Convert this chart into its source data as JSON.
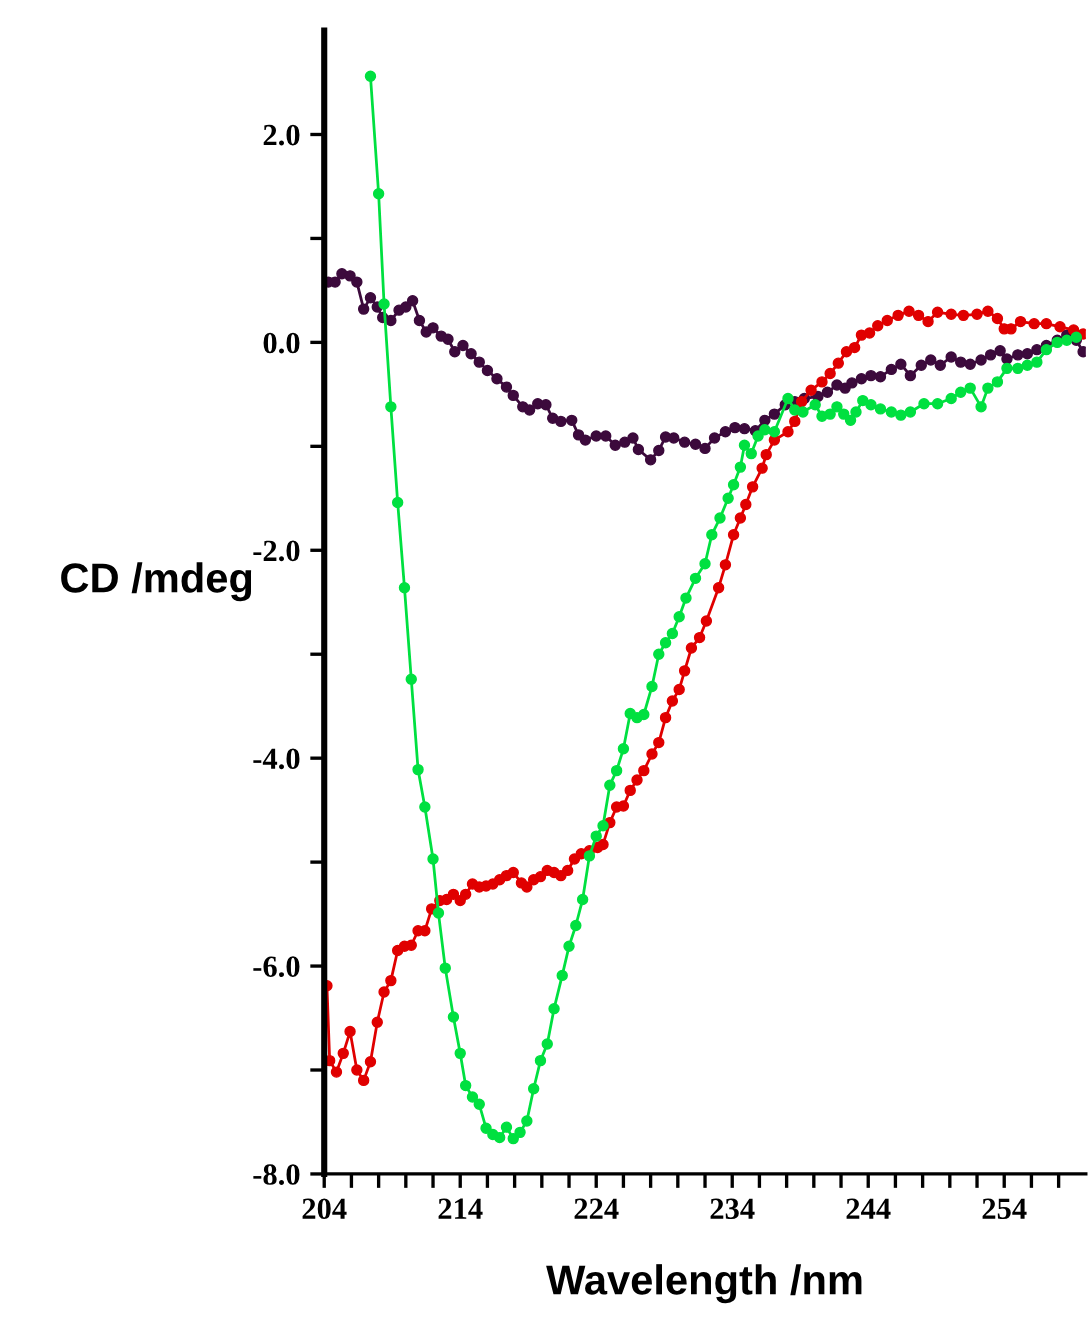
{
  "chart_data": {
    "type": "line",
    "xlabel": "Wavelength /nm",
    "ylabel": "CD /mdeg",
    "xlim": [
      204,
      260
    ],
    "ylim": [
      -8,
      3
    ],
    "xticks": [
      204,
      {
        "value": 206,
        "label": null
      },
      {
        "value": 208,
        "label": null
      },
      {
        "value": 210,
        "label": null
      },
      {
        "value": 212,
        "label": null
      },
      214,
      {
        "value": 216,
        "label": null
      },
      {
        "value": 218,
        "label": null
      },
      {
        "value": 220,
        "label": null
      },
      {
        "value": 222,
        "label": null
      },
      224,
      {
        "value": 226,
        "label": null
      },
      {
        "value": 228,
        "label": null
      },
      {
        "value": 230,
        "label": null
      },
      {
        "value": 232,
        "label": null
      },
      234,
      {
        "value": 236,
        "label": null
      },
      {
        "value": 238,
        "label": null
      },
      {
        "value": 240,
        "label": null
      },
      {
        "value": 242,
        "label": null
      },
      244,
      {
        "value": 246,
        "label": null
      },
      {
        "value": 248,
        "label": null
      },
      {
        "value": 250,
        "label": null
      },
      {
        "value": 252,
        "label": null
      },
      254,
      {
        "value": 256,
        "label": null
      },
      {
        "value": 258,
        "label": null
      }
    ],
    "yticks": [
      {
        "value": -8,
        "label": "-8.0"
      },
      {
        "value": -7,
        "label": null
      },
      {
        "value": -6,
        "label": "-6.0"
      },
      {
        "value": -5,
        "label": null
      },
      {
        "value": -4,
        "label": "-4.0"
      },
      {
        "value": -3,
        "label": null
      },
      {
        "value": -2,
        "label": "-2.0"
      },
      {
        "value": -1,
        "label": null
      },
      {
        "value": 0,
        "label": "0.0"
      },
      {
        "value": 1,
        "label": null
      },
      {
        "value": 2,
        "label": "2.0"
      }
    ],
    "marker": "circle",
    "line_style": "solid",
    "grid": false,
    "legend": false,
    "series": [
      {
        "color": "#3c0a3c",
        "x": [
          204.3,
          204.8,
          205.3,
          205.9,
          206.4,
          206.9,
          207.4,
          207.9,
          208.3,
          208.9,
          209.5,
          210.0,
          210.5,
          211.0,
          211.5,
          212.0,
          212.6,
          213.1,
          213.6,
          214.2,
          214.8,
          215.4,
          216.0,
          216.7,
          217.4,
          217.9,
          218.6,
          219.1,
          219.7,
          220.3,
          220.8,
          221.4,
          222.2,
          222.7,
          223.2,
          224.0,
          224.7,
          225.4,
          226.1,
          226.7,
          227.1,
          228.0,
          228.6,
          229.1,
          229.7,
          230.5,
          231.3,
          232.0,
          232.7,
          233.5,
          234.2,
          234.9,
          235.7,
          236.4,
          237.1,
          237.9,
          238.6,
          239.3,
          240.3,
          241.0,
          241.7,
          242.3,
          242.8,
          243.5,
          244.2,
          244.9,
          245.7,
          246.4,
          247.1,
          247.9,
          248.6,
          249.3,
          250.1,
          250.8,
          251.5,
          252.3,
          253.0,
          253.7,
          254.2,
          255.0,
          255.7,
          256.4,
          257.1,
          257.9,
          258.6,
          259.3,
          259.8
        ],
        "values": [
          0.58,
          0.58,
          0.66,
          0.64,
          0.58,
          0.32,
          0.43,
          0.34,
          0.24,
          0.21,
          0.31,
          0.34,
          0.4,
          0.21,
          0.1,
          0.14,
          0.06,
          0.03,
          -0.09,
          -0.03,
          -0.11,
          -0.19,
          -0.27,
          -0.35,
          -0.43,
          -0.51,
          -0.62,
          -0.65,
          -0.59,
          -0.6,
          -0.73,
          -0.76,
          -0.75,
          -0.89,
          -0.94,
          -0.9,
          -0.9,
          -0.99,
          -0.96,
          -0.92,
          -1.03,
          -1.13,
          -1.04,
          -0.91,
          -0.92,
          -0.96,
          -0.98,
          -1.02,
          -0.92,
          -0.86,
          -0.82,
          -0.83,
          -0.85,
          -0.75,
          -0.69,
          -0.6,
          -0.57,
          -0.54,
          -0.52,
          -0.48,
          -0.41,
          -0.44,
          -0.39,
          -0.35,
          -0.32,
          -0.33,
          -0.26,
          -0.21,
          -0.32,
          -0.22,
          -0.17,
          -0.22,
          -0.14,
          -0.19,
          -0.21,
          -0.17,
          -0.12,
          -0.08,
          -0.16,
          -0.12,
          -0.11,
          -0.07,
          -0.03,
          0.02,
          0.07,
          0.02,
          -0.09
        ]
      },
      {
        "color": "#e00000",
        "x": [
          204.2,
          204.4,
          204.9,
          205.4,
          205.9,
          206.4,
          206.9,
          207.4,
          207.9,
          208.4,
          208.9,
          209.4,
          209.9,
          210.4,
          210.9,
          211.4,
          211.9,
          212.5,
          213.0,
          213.5,
          214.0,
          214.4,
          214.9,
          215.4,
          215.9,
          216.4,
          216.9,
          217.4,
          217.9,
          218.5,
          218.9,
          219.4,
          219.9,
          220.4,
          220.9,
          221.4,
          221.9,
          222.4,
          222.9,
          223.5,
          224.1,
          224.5,
          225.0,
          225.5,
          226.0,
          226.5,
          227.0,
          227.5,
          228.1,
          228.6,
          229.1,
          229.6,
          230.1,
          230.5,
          231.0,
          231.6,
          232.1,
          233.0,
          233.5,
          234.1,
          234.6,
          235.0,
          235.5,
          236.2,
          236.5,
          237.1,
          238.1,
          238.6,
          239.1,
          239.8,
          240.6,
          241.2,
          241.8,
          242.4,
          243.0,
          243.5,
          244.1,
          244.7,
          245.4,
          246.2,
          247.0,
          247.7,
          248.4,
          249.1,
          250.1,
          251.0,
          252.0,
          252.8,
          253.5,
          254.0,
          254.5,
          255.2,
          256.2,
          257.1,
          258.1,
          259.1,
          259.8
        ],
        "values": [
          -6.19,
          -6.91,
          -7.02,
          -6.84,
          -6.63,
          -7.0,
          -7.1,
          -6.92,
          -6.54,
          -6.25,
          -6.14,
          -5.85,
          -5.81,
          -5.8,
          -5.66,
          -5.66,
          -5.45,
          -5.37,
          -5.36,
          -5.31,
          -5.37,
          -5.31,
          -5.21,
          -5.24,
          -5.23,
          -5.21,
          -5.17,
          -5.13,
          -5.1,
          -5.2,
          -5.24,
          -5.17,
          -5.14,
          -5.08,
          -5.1,
          -5.13,
          -5.08,
          -4.97,
          -4.92,
          -4.89,
          -4.86,
          -4.83,
          -4.62,
          -4.47,
          -4.46,
          -4.31,
          -4.21,
          -4.12,
          -3.96,
          -3.85,
          -3.61,
          -3.45,
          -3.34,
          -3.16,
          -2.94,
          -2.84,
          -2.68,
          -2.36,
          -2.14,
          -1.85,
          -1.69,
          -1.56,
          -1.39,
          -1.21,
          -1.08,
          -0.94,
          -0.86,
          -0.76,
          -0.57,
          -0.46,
          -0.38,
          -0.3,
          -0.2,
          -0.09,
          -0.05,
          0.07,
          0.09,
          0.16,
          0.21,
          0.26,
          0.3,
          0.26,
          0.2,
          0.29,
          0.27,
          0.26,
          0.27,
          0.3,
          0.23,
          0.13,
          0.13,
          0.2,
          0.18,
          0.18,
          0.15,
          0.12,
          0.08
        ]
      },
      {
        "color": "#00e040",
        "x": [
          207.4,
          208.0,
          208.4,
          208.9,
          209.4,
          209.9,
          210.4,
          210.9,
          211.4,
          212.0,
          212.4,
          212.9,
          213.5,
          214.0,
          214.4,
          214.9,
          215.4,
          215.9,
          216.4,
          216.9,
          217.4,
          217.9,
          218.4,
          218.9,
          219.4,
          219.9,
          220.4,
          220.9,
          221.5,
          222.0,
          222.5,
          223.0,
          223.5,
          224.0,
          224.5,
          225.0,
          225.5,
          226.0,
          226.5,
          227.0,
          227.5,
          228.1,
          228.6,
          229.1,
          229.6,
          230.1,
          230.6,
          231.3,
          232.0,
          232.5,
          233.1,
          233.7,
          234.1,
          234.6,
          234.9,
          235.4,
          235.9,
          236.4,
          237.1,
          238.1,
          238.6,
          239.2,
          240.1,
          240.6,
          241.2,
          241.7,
          242.2,
          242.7,
          243.1,
          243.6,
          244.2,
          244.9,
          245.7,
          246.4,
          247.1,
          248.1,
          249.1,
          250.1,
          250.8,
          251.5,
          252.3,
          252.8,
          253.5,
          254.2,
          255.0,
          255.7,
          256.4,
          257.1,
          257.9,
          258.6,
          259.3
        ],
        "values": [
          2.56,
          1.43,
          0.37,
          -0.62,
          -1.54,
          -2.36,
          -3.24,
          -4.11,
          -4.47,
          -4.97,
          -5.49,
          -6.02,
          -6.49,
          -6.84,
          -7.15,
          -7.26,
          -7.33,
          -7.56,
          -7.62,
          -7.65,
          -7.55,
          -7.66,
          -7.6,
          -7.49,
          -7.18,
          -6.91,
          -6.75,
          -6.41,
          -6.09,
          -5.81,
          -5.61,
          -5.36,
          -4.94,
          -4.75,
          -4.65,
          -4.26,
          -4.12,
          -3.91,
          -3.57,
          -3.61,
          -3.58,
          -3.31,
          -3.0,
          -2.89,
          -2.8,
          -2.64,
          -2.46,
          -2.27,
          -2.13,
          -1.85,
          -1.69,
          -1.5,
          -1.37,
          -1.2,
          -0.99,
          -1.07,
          -0.9,
          -0.84,
          -0.86,
          -0.54,
          -0.65,
          -0.67,
          -0.6,
          -0.71,
          -0.69,
          -0.62,
          -0.69,
          -0.75,
          -0.67,
          -0.56,
          -0.6,
          -0.64,
          -0.67,
          -0.7,
          -0.67,
          -0.59,
          -0.59,
          -0.54,
          -0.48,
          -0.44,
          -0.62,
          -0.44,
          -0.38,
          -0.25,
          -0.25,
          -0.22,
          -0.19,
          -0.07,
          0.0,
          0.02,
          0.05
        ]
      }
    ]
  }
}
